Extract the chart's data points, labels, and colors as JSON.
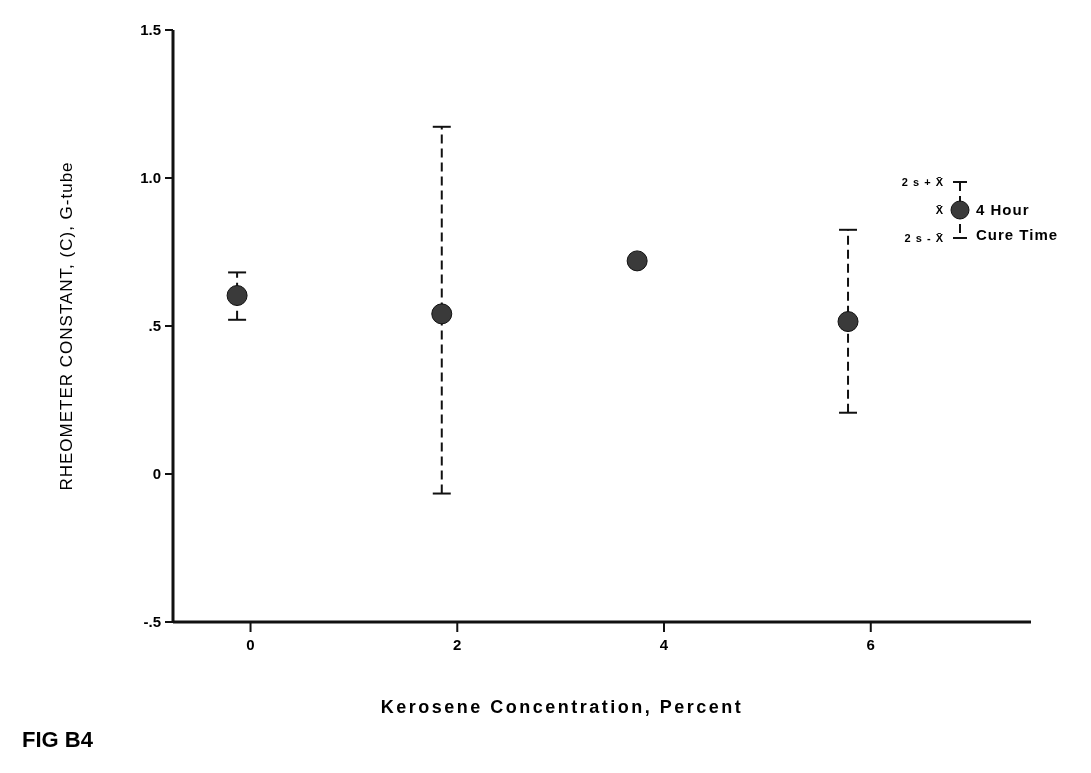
{
  "chart_data": {
    "type": "scatter",
    "xlabel": "Kerosene Concentration, Percent",
    "ylabel": "RHEOMETER CONSTANT, (C), G-tube",
    "x": [
      -0.13,
      1.85,
      3.74,
      5.78
    ],
    "series": [
      {
        "name": "4 Hour Cure Time",
        "color": "#3a3a3a",
        "values": [
          0.603,
          0.541,
          0.72,
          0.515
        ],
        "errors": [
          [
            0.521,
            0.681
          ],
          [
            -0.066,
            1.173
          ],
          null,
          [
            0.207,
            0.825
          ]
        ]
      }
    ],
    "xlim": [
      -0.75,
      7.55
    ],
    "xticks": [
      0,
      2,
      4,
      6
    ],
    "ylim": [
      -0.5,
      1.5
    ],
    "yticks": [
      {
        "value": -0.5,
        "label": "-.5"
      },
      0,
      {
        "value": 0.5,
        "label": ".5"
      },
      {
        "value": 1,
        "label": "1.0"
      },
      1.5
    ],
    "marker": "circle",
    "line_style": "dashed",
    "legend": "top right",
    "annotations": [
      "2 s + X̄",
      "X̄",
      "2 s - X̄",
      "FIG B4"
    ]
  }
}
